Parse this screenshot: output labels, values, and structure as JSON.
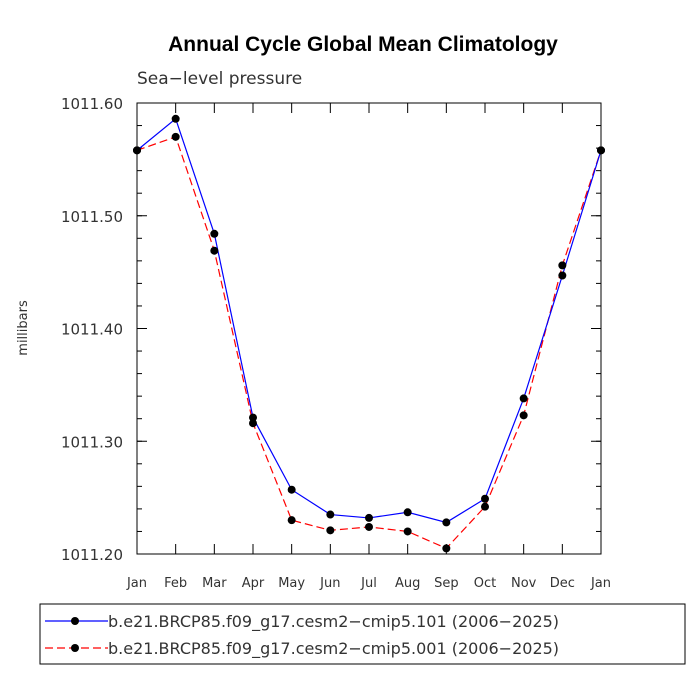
{
  "chart_data": {
    "type": "line",
    "title": "Annual Cycle Global Mean Climatology",
    "subtitle": "Sea−level pressure",
    "xlabel": "",
    "ylabel": "millibars",
    "categories": [
      "Jan",
      "Feb",
      "Mar",
      "Apr",
      "May",
      "Jun",
      "Jul",
      "Aug",
      "Sep",
      "Oct",
      "Nov",
      "Dec",
      "Jan"
    ],
    "ylim": [
      1011.2,
      1011.6
    ],
    "yticks": [
      1011.2,
      1011.3,
      1011.4,
      1011.5,
      1011.6
    ],
    "ytick_labels": [
      "1011.20",
      "1011.30",
      "1011.40",
      "1011.50",
      "1011.60"
    ],
    "series": [
      {
        "name": "b.e21.BRCP85.f09_g17.cesm2−cmip5.101 (2006−2025)",
        "color": "#0000ff",
        "style": "solid",
        "values": [
          1011.558,
          1011.586,
          1011.484,
          1011.321,
          1011.257,
          1011.235,
          1011.232,
          1011.237,
          1011.228,
          1011.249,
          1011.338,
          1011.447,
          1011.558
        ]
      },
      {
        "name": "b.e21.BRCP85.f09_g17.cesm2−cmip5.001 (2006−2025)",
        "color": "#ff0000",
        "style": "dashed",
        "values": [
          1011.558,
          1011.57,
          1011.469,
          1011.316,
          1011.23,
          1011.221,
          1011.224,
          1011.22,
          1011.205,
          1011.242,
          1011.323,
          1011.456,
          1011.558
        ]
      }
    ],
    "legend_position": "bottom"
  }
}
